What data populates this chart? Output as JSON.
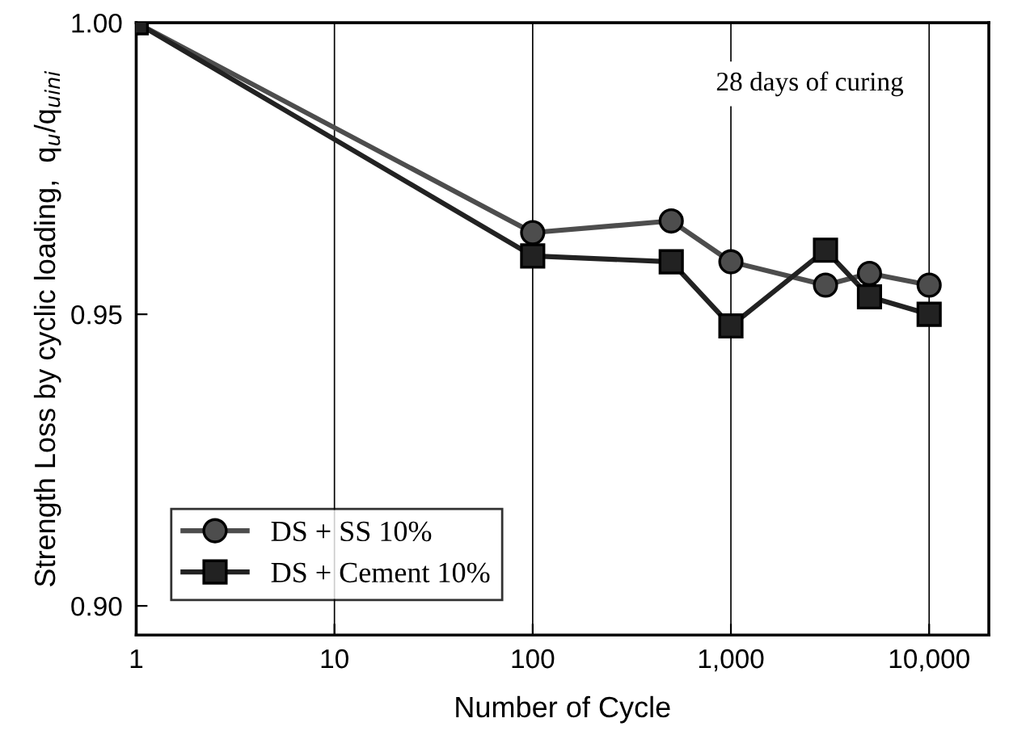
{
  "chart_data": {
    "type": "line",
    "xlabel": "Number of Cycle",
    "ylabel": "Strength Loss by cyclic loading,  q$_{u}$/q$_{uini}$",
    "annotations": [
      "28 days of curing"
    ],
    "x": [
      1,
      100,
      500,
      1000,
      3000,
      5000,
      10000
    ],
    "series": [
      {
        "name": "DS + SS 10%",
        "color": "#4d4d4d",
        "marker": "circle",
        "values": [
          1.0,
          0.964,
          0.966,
          0.959,
          0.955,
          0.957,
          0.955
        ]
      },
      {
        "name": "DS + Cement 10%",
        "color": "#222222",
        "marker": "square",
        "values": [
          1.0,
          0.96,
          0.959,
          0.948,
          0.961,
          0.953,
          0.95
        ]
      }
    ],
    "log": "x",
    "xlim": [
      1,
      20000
    ],
    "xticks": [
      1,
      10,
      100,
      {
        "value": 1000,
        "label": "1,000"
      },
      {
        "value": 10000,
        "label": "10,000"
      }
    ],
    "ylim": [
      0.895,
      1.0
    ],
    "yticks": [
      {
        "value": 0.9,
        "label": "0.90"
      },
      {
        "value": 0.95,
        "label": "0.95"
      },
      {
        "value": 1.0,
        "label": "1.00"
      }
    ],
    "grid": "x",
    "legend": "bottom left",
    "line_style": "solid"
  }
}
